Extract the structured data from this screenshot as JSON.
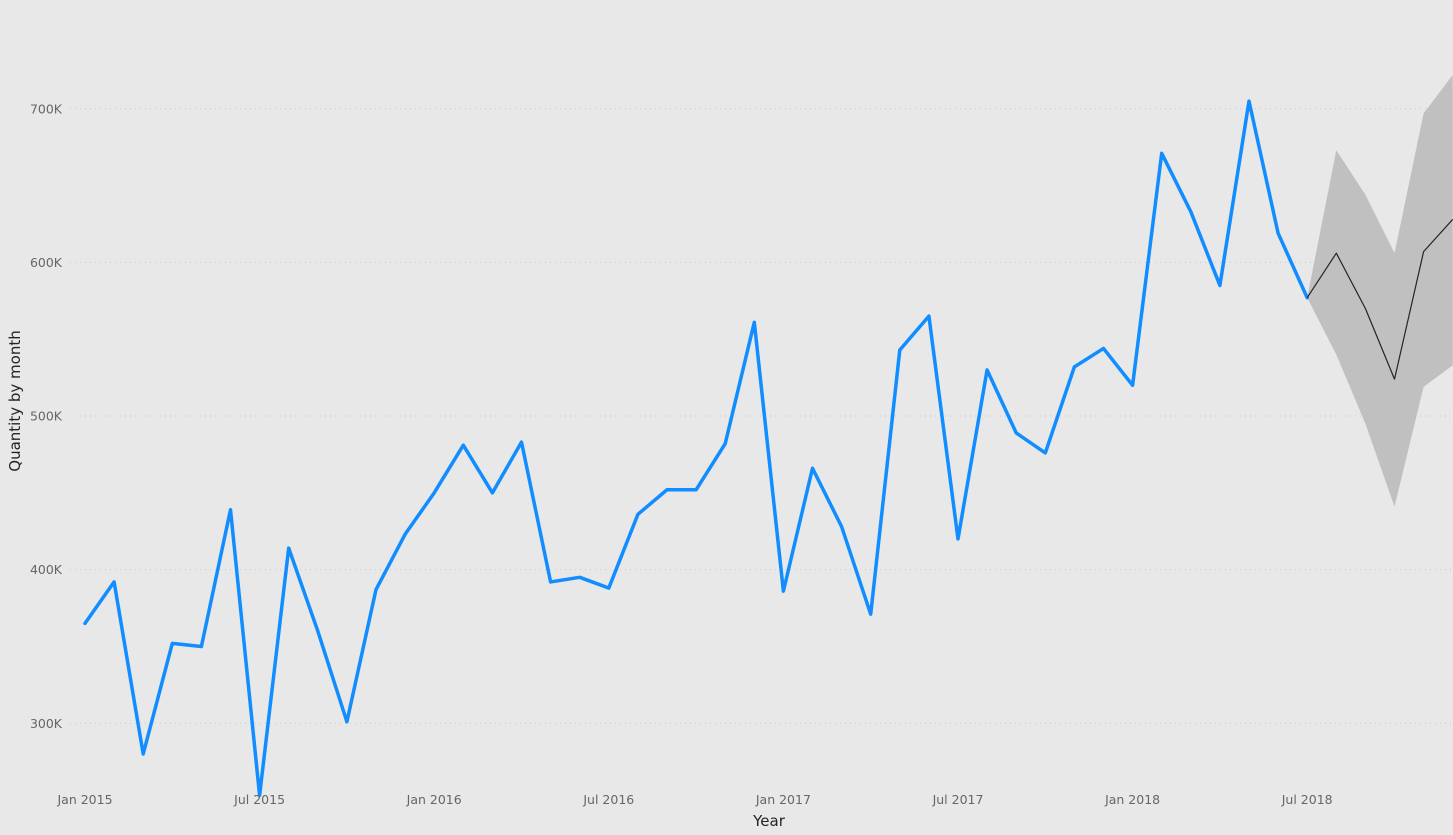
{
  "chart_data": {
    "type": "line",
    "title": "",
    "xlabel": "Year",
    "ylabel": "Quantity by month",
    "grid": "horizontal dotted",
    "ylim": [
      252000,
      735000
    ],
    "y_ticks": [
      {
        "value": 300000,
        "label": "300K"
      },
      {
        "value": 400000,
        "label": "400K"
      },
      {
        "value": 500000,
        "label": "500K"
      },
      {
        "value": 600000,
        "label": "600K"
      },
      {
        "value": 700000,
        "label": "700K"
      }
    ],
    "x_ticks": [
      {
        "date": "2015-01",
        "label": "Jan 2015"
      },
      {
        "date": "2015-07",
        "label": "Jul 2015"
      },
      {
        "date": "2016-01",
        "label": "Jan 2016"
      },
      {
        "date": "2016-07",
        "label": "Jul 2016"
      },
      {
        "date": "2017-01",
        "label": "Jan 2017"
      },
      {
        "date": "2017-07",
        "label": "Jul 2017"
      },
      {
        "date": "2018-01",
        "label": "Jan 2018"
      },
      {
        "date": "2018-07",
        "label": "Jul 2018"
      }
    ],
    "x": [
      "2015-01",
      "2015-02",
      "2015-03",
      "2015-04",
      "2015-05",
      "2015-06",
      "2015-07",
      "2015-08",
      "2015-09",
      "2015-10",
      "2015-11",
      "2015-12",
      "2016-01",
      "2016-02",
      "2016-03",
      "2016-04",
      "2016-05",
      "2016-06",
      "2016-07",
      "2016-08",
      "2016-09",
      "2016-10",
      "2016-11",
      "2016-12",
      "2017-01",
      "2017-02",
      "2017-03",
      "2017-04",
      "2017-05",
      "2017-06",
      "2017-07",
      "2017-08",
      "2017-09",
      "2017-10",
      "2017-11",
      "2017-12",
      "2018-01",
      "2018-02",
      "2018-03",
      "2018-04",
      "2018-05",
      "2018-06",
      "2018-07"
    ],
    "series": [
      {
        "values": [
          365000,
          392000,
          280000,
          352000,
          350000,
          439000,
          253000,
          414000,
          360000,
          301000,
          387000,
          423000,
          450000,
          481000,
          450000,
          483000,
          392000,
          395000,
          388000,
          436000,
          452000,
          452000,
          482000,
          561000,
          386000,
          466000,
          428000,
          371000,
          543000,
          565000,
          420000,
          530000,
          489000,
          476000,
          532000,
          544000,
          520000,
          671000,
          633000,
          585000,
          705000,
          619000,
          577000
        ],
        "color": "#118dff"
      }
    ],
    "forecast": {
      "x": [
        "2018-07",
        "2018-08",
        "2018-09",
        "2018-10",
        "2018-11",
        "2018-12"
      ],
      "values": [
        577000,
        606000,
        570000,
        524000,
        607000,
        628000
      ],
      "upper": [
        577000,
        673000,
        644000,
        606000,
        697000,
        722000
      ],
      "lower": [
        577000,
        540000,
        495000,
        441000,
        519000,
        533000
      ],
      "line_color": "#252423",
      "band_color": "#c0c0c0"
    }
  }
}
